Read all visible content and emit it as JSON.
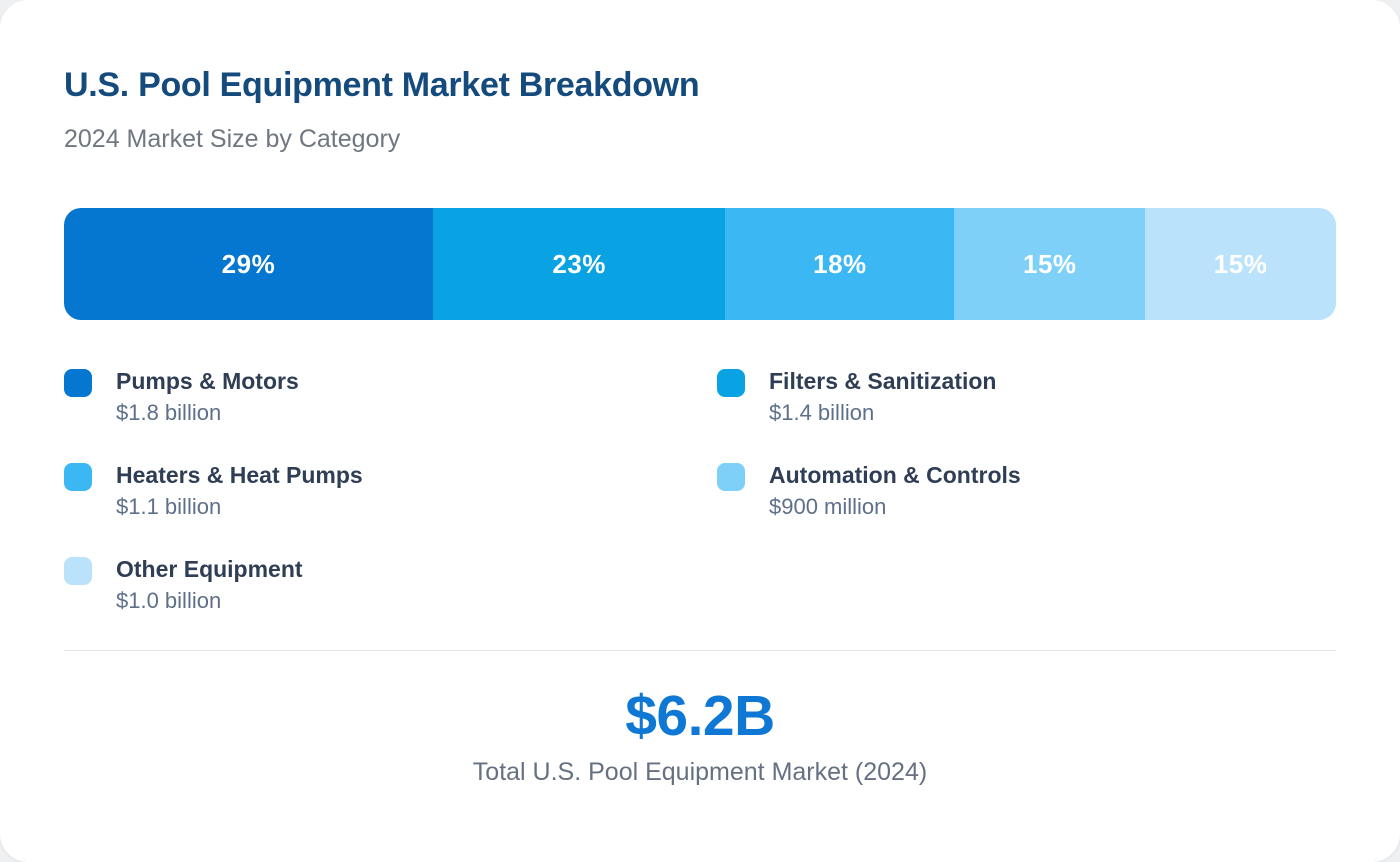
{
  "header": {
    "title": "U.S. Pool Equipment Market Breakdown",
    "subtitle": "2024 Market Size by Category"
  },
  "chart_data": {
    "type": "bar",
    "variant": "horizontal-stacked-single-bar",
    "title": "U.S. Pool Equipment Market Breakdown",
    "subtitle": "2024 Market Size by Category",
    "legend_position": "below-bar-two-columns",
    "segments": [
      {
        "label": "Pumps & Motors",
        "percent": 29,
        "percent_label": "29%",
        "value_text": "$1.8 billion",
        "value_billions_usd": 1.8,
        "color": "#0577d1"
      },
      {
        "label": "Filters & Sanitization",
        "percent": 23,
        "percent_label": "23%",
        "value_text": "$1.4 billion",
        "value_billions_usd": 1.4,
        "color": "#09a2e2"
      },
      {
        "label": "Heaters & Heat Pumps",
        "percent": 18,
        "percent_label": "18%",
        "value_text": "$1.1 billion",
        "value_billions_usd": 1.1,
        "color": "#3bb8f4"
      },
      {
        "label": "Automation & Controls",
        "percent": 15,
        "percent_label": "15%",
        "value_text": "$900 million",
        "value_billions_usd": 0.9,
        "color": "#7ed0f8"
      },
      {
        "label": "Other Equipment",
        "percent": 15,
        "percent_label": "15%",
        "value_text": "$1.0 billion",
        "value_billions_usd": 1.0,
        "color": "#bae3fb"
      }
    ],
    "total": {
      "value": "$6.2B",
      "label": "Total U.S. Pool Equipment Market (2024)"
    }
  },
  "colors": {
    "title": "#154a7d",
    "subtitle": "#6f7781",
    "legend_label": "#2f3e54",
    "legend_value": "#5e7089",
    "total_value": "#0e78d4",
    "total_label": "#667083",
    "divider": "#e6e8ee",
    "card_background": "#ffffff",
    "page_background": "#eef0f2"
  }
}
